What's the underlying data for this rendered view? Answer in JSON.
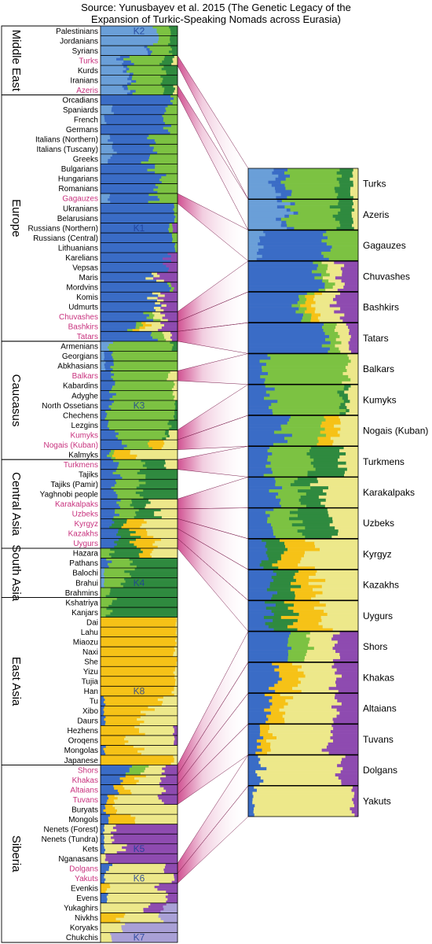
{
  "title_line1": "Source: Yunusbayev et al. 2015 (The Genetic Legacy of the",
  "title_line2": "Expansion of Turkic-Speaking Nomads across Eurasia)",
  "component_colors": {
    "K1": "#3a6cc6",
    "K2": "#6a9fd8",
    "K3": "#7cc242",
    "K4": "#2f8a3f",
    "K5": "#8e4bb0",
    "K6": "#ede88a",
    "K7": "#a9a0d6",
    "K8": "#f6c217"
  },
  "turkic_color": "#c8327e",
  "regions": [
    {
      "name": "Middle East",
      "start": "Palestinians",
      "end": "Azeris"
    },
    {
      "name": "Europe",
      "start": "Orcadians",
      "end": "Tatars"
    },
    {
      "name": "Caucasus",
      "start": "Armenians",
      "end": "Kalmyks"
    },
    {
      "name": "Central Asia",
      "start": "Turkmens",
      "end": "Uygurs"
    },
    {
      "name": "South Asia",
      "start": "Hazara",
      "end": "Brahmins"
    },
    {
      "name": "East Asia",
      "start": "Kshatriya",
      "end": "Japanese"
    },
    {
      "name": "Siberia",
      "start": "Shors",
      "end": "Chukchis"
    }
  ],
  "populations": [
    {
      "name": "Palestinians",
      "turkic": false
    },
    {
      "name": "Jordanians",
      "turkic": false
    },
    {
      "name": "Syrians",
      "turkic": false
    },
    {
      "name": "Turks",
      "turkic": true
    },
    {
      "name": "Kurds",
      "turkic": false
    },
    {
      "name": "Iranians",
      "turkic": false
    },
    {
      "name": "Azeris",
      "turkic": true
    },
    {
      "name": "Orcadians",
      "turkic": false
    },
    {
      "name": "Spaniards",
      "turkic": false
    },
    {
      "name": "French",
      "turkic": false
    },
    {
      "name": "Germans",
      "turkic": false
    },
    {
      "name": "Italians (Northern)",
      "turkic": false
    },
    {
      "name": "Italians (Tuscany)",
      "turkic": false
    },
    {
      "name": "Greeks",
      "turkic": false
    },
    {
      "name": "Bulgarians",
      "turkic": false
    },
    {
      "name": "Hungarians",
      "turkic": false
    },
    {
      "name": "Romanians",
      "turkic": false
    },
    {
      "name": "Gagauzes",
      "turkic": true
    },
    {
      "name": "Ukranians",
      "turkic": false
    },
    {
      "name": "Belarusians",
      "turkic": false
    },
    {
      "name": "Russians (Northern)",
      "turkic": false
    },
    {
      "name": "Russians (Central)",
      "turkic": false
    },
    {
      "name": "Lithuanians",
      "turkic": false
    },
    {
      "name": "Karelians",
      "turkic": false
    },
    {
      "name": "Vepsas",
      "turkic": false
    },
    {
      "name": "Maris",
      "turkic": false
    },
    {
      "name": "Mordvins",
      "turkic": false
    },
    {
      "name": "Komis",
      "turkic": false
    },
    {
      "name": "Udmurts",
      "turkic": false
    },
    {
      "name": "Chuvashes",
      "turkic": true
    },
    {
      "name": "Bashkirs",
      "turkic": true
    },
    {
      "name": "Tatars",
      "turkic": true
    },
    {
      "name": "Armenians",
      "turkic": false
    },
    {
      "name": "Georgians",
      "turkic": false
    },
    {
      "name": "Abkhasians",
      "turkic": false
    },
    {
      "name": "Balkars",
      "turkic": true
    },
    {
      "name": "Kabardins",
      "turkic": false
    },
    {
      "name": "Adyghe",
      "turkic": false
    },
    {
      "name": "North Ossetians",
      "turkic": false
    },
    {
      "name": "Chechens",
      "turkic": false
    },
    {
      "name": "Lezgins",
      "turkic": false
    },
    {
      "name": "Kumyks",
      "turkic": true
    },
    {
      "name": "Nogais (Kuban)",
      "turkic": true
    },
    {
      "name": "Kalmyks",
      "turkic": false
    },
    {
      "name": "Turkmens",
      "turkic": true
    },
    {
      "name": "Tajiks",
      "turkic": false
    },
    {
      "name": "Tajiks (Pamir)",
      "turkic": false
    },
    {
      "name": "Yaghnobi people",
      "turkic": false
    },
    {
      "name": "Karakalpaks",
      "turkic": true
    },
    {
      "name": "Uzbeks",
      "turkic": true
    },
    {
      "name": "Kyrgyz",
      "turkic": true
    },
    {
      "name": "Kazakhs",
      "turkic": true
    },
    {
      "name": "Uygurs",
      "turkic": true
    },
    {
      "name": "Hazara",
      "turkic": false
    },
    {
      "name": "Pathans",
      "turkic": false
    },
    {
      "name": "Balochi",
      "turkic": false
    },
    {
      "name": "Brahui",
      "turkic": false
    },
    {
      "name": "Brahmins",
      "turkic": false
    },
    {
      "name": "Kshatriya",
      "turkic": false
    },
    {
      "name": "Kanjars",
      "turkic": false
    },
    {
      "name": "Dai",
      "turkic": false
    },
    {
      "name": "Lahu",
      "turkic": false
    },
    {
      "name": "Miaozu",
      "turkic": false
    },
    {
      "name": "Naxi",
      "turkic": false
    },
    {
      "name": "She",
      "turkic": false
    },
    {
      "name": "Yizu",
      "turkic": false
    },
    {
      "name": "Tujia",
      "turkic": false
    },
    {
      "name": "Han",
      "turkic": false
    },
    {
      "name": "Tu",
      "turkic": false
    },
    {
      "name": "Xibo",
      "turkic": false
    },
    {
      "name": "Daurs",
      "turkic": false
    },
    {
      "name": "Hezhens",
      "turkic": false
    },
    {
      "name": "Oroqens",
      "turkic": false
    },
    {
      "name": "Mongolas",
      "turkic": false
    },
    {
      "name": "Japanese",
      "turkic": false
    },
    {
      "name": "Shors",
      "turkic": true
    },
    {
      "name": "Khakas",
      "turkic": true
    },
    {
      "name": "Altaians",
      "turkic": true
    },
    {
      "name": "Tuvans",
      "turkic": true
    },
    {
      "name": "Buryats",
      "turkic": false
    },
    {
      "name": "Mongols",
      "turkic": false
    },
    {
      "name": "Nenets (Forest)",
      "turkic": false
    },
    {
      "name": "Nenets (Tundra)",
      "turkic": false
    },
    {
      "name": "Kets",
      "turkic": false
    },
    {
      "name": "Nganasans",
      "turkic": false
    },
    {
      "name": "Dolgans",
      "turkic": true
    },
    {
      "name": "Yakuts",
      "turkic": true
    },
    {
      "name": "Evenkis",
      "turkic": false
    },
    {
      "name": "Evens",
      "turkic": false
    },
    {
      "name": "Yukaghirs",
      "turkic": false
    },
    {
      "name": "Nivkhs",
      "turkic": false
    },
    {
      "name": "Koryaks",
      "turkic": false
    },
    {
      "name": "Chukchis",
      "turkic": false
    }
  ],
  "component_labels": [
    {
      "label": "K2",
      "population": "Palestinians"
    },
    {
      "label": "K1",
      "population": "Russians (Northern)"
    },
    {
      "label": "K3",
      "population": "North Ossetians"
    },
    {
      "label": "K4",
      "population": "Brahui"
    },
    {
      "label": "K8",
      "population": "Han"
    },
    {
      "label": "K5",
      "population": "Kets"
    },
    {
      "label": "K6",
      "population": "Yakuts"
    },
    {
      "label": "K7",
      "population": "Chukchis"
    }
  ],
  "zoomed_populations": [
    "Turks",
    "Azeris",
    "Gagauzes",
    "Chuvashes",
    "Bashkirs",
    "Tatars",
    "Balkars",
    "Kumyks",
    "Nogais (Kuban)",
    "Turkmens",
    "Karakalpaks",
    "Uzbeks",
    "Kyrgyz",
    "Kazakhs",
    "Uygurs",
    "Shors",
    "Khakas",
    "Altaians",
    "Tuvans",
    "Dolgans",
    "Yakuts"
  ],
  "admixture_proportions": {
    "Palestinians": {
      "K2": 0.72,
      "K3": 0.18,
      "K4": 0.1
    },
    "Jordanians": {
      "K2": 0.68,
      "K3": 0.2,
      "K4": 0.12
    },
    "Syrians": {
      "K2": 0.55,
      "K3": 0.3,
      "K4": 0.1,
      "K1": 0.05
    },
    "Turks": {
      "K2": 0.25,
      "K3": 0.45,
      "K1": 0.12,
      "K4": 0.12,
      "K6": 0.06
    },
    "Kurds": {
      "K2": 0.3,
      "K3": 0.5,
      "K4": 0.15,
      "K1": 0.05
    },
    "Iranians": {
      "K2": 0.35,
      "K3": 0.35,
      "K4": 0.25,
      "K1": 0.05
    },
    "Azeris": {
      "K2": 0.3,
      "K3": 0.45,
      "K4": 0.15,
      "K1": 0.05,
      "K6": 0.05
    },
    "Orcadians": {
      "K1": 0.92,
      "K3": 0.08
    },
    "Spaniards": {
      "K1": 0.7,
      "K2": 0.15,
      "K3": 0.15
    },
    "French": {
      "K1": 0.8,
      "K3": 0.15,
      "K2": 0.05
    },
    "Germans": {
      "K1": 0.88,
      "K3": 0.12
    },
    "Italians (Northern)": {
      "K1": 0.6,
      "K3": 0.3,
      "K2": 0.1
    },
    "Italians (Tuscany)": {
      "K1": 0.55,
      "K3": 0.3,
      "K2": 0.15
    },
    "Greeks": {
      "K1": 0.5,
      "K3": 0.38,
      "K2": 0.12
    },
    "Bulgarians": {
      "K1": 0.7,
      "K3": 0.3
    },
    "Hungarians": {
      "K1": 0.8,
      "K3": 0.2
    },
    "Romanians": {
      "K1": 0.72,
      "K3": 0.28
    },
    "Gagauzes": {
      "K1": 0.6,
      "K3": 0.3,
      "K2": 0.1
    },
    "Ukranians": {
      "K1": 0.95,
      "K3": 0.05
    },
    "Belarusians": {
      "K1": 0.96,
      "K3": 0.04
    },
    "Russians (Northern)": {
      "K1": 0.9,
      "K5": 0.06,
      "K3": 0.04
    },
    "Russians (Central)": {
      "K1": 0.93,
      "K3": 0.07
    },
    "Lithuanians": {
      "K1": 0.97,
      "K3": 0.03
    },
    "Karelians": {
      "K1": 0.88,
      "K5": 0.12
    },
    "Vepsas": {
      "K1": 0.85,
      "K5": 0.15
    },
    "Maris": {
      "K1": 0.65,
      "K5": 0.25,
      "K6": 0.1
    },
    "Mordvins": {
      "K1": 0.88,
      "K5": 0.07,
      "K3": 0.05
    },
    "Komis": {
      "K1": 0.7,
      "K5": 0.2,
      "K6": 0.1
    },
    "Udmurts": {
      "K1": 0.72,
      "K5": 0.2,
      "K6": 0.08
    },
    "Chuvashes": {
      "K1": 0.65,
      "K5": 0.15,
      "K6": 0.12,
      "K3": 0.08
    },
    "Bashkirs": {
      "K1": 0.45,
      "K5": 0.2,
      "K6": 0.2,
      "K8": 0.08,
      "K3": 0.07
    },
    "Tatars": {
      "K1": 0.7,
      "K3": 0.12,
      "K5": 0.08,
      "K6": 0.1
    },
    "Armenians": {
      "K3": 0.8,
      "K2": 0.12,
      "K4": 0.08
    },
    "Georgians": {
      "K3": 0.85,
      "K1": 0.1,
      "K2": 0.05
    },
    "Abkhasians": {
      "K3": 0.85,
      "K1": 0.1,
      "K2": 0.05
    },
    "Balkars": {
      "K3": 0.75,
      "K1": 0.15,
      "K6": 0.1
    },
    "Kabardins": {
      "K3": 0.8,
      "K1": 0.15,
      "K6": 0.05
    },
    "Adyghe": {
      "K3": 0.82,
      "K1": 0.13,
      "K6": 0.05
    },
    "North Ossetians": {
      "K3": 0.85,
      "K1": 0.12,
      "K4": 0.03
    },
    "Chechens": {
      "K3": 0.88,
      "K1": 0.08,
      "K4": 0.04
    },
    "Lezgins": {
      "K3": 0.8,
      "K1": 0.1,
      "K4": 0.1
    },
    "Kumyks": {
      "K3": 0.65,
      "K1": 0.2,
      "K6": 0.1,
      "K4": 0.05
    },
    "Nogais (Kuban)": {
      "K3": 0.35,
      "K1": 0.3,
      "K6": 0.2,
      "K8": 0.15
    },
    "Kalmyks": {
      "K6": 0.6,
      "K8": 0.25,
      "K1": 0.1,
      "K3": 0.05
    },
    "Turkmens": {
      "K3": 0.35,
      "K4": 0.3,
      "K1": 0.2,
      "K6": 0.15
    },
    "Tajiks": {
      "K3": 0.35,
      "K4": 0.45,
      "K1": 0.2
    },
    "Tajiks (Pamir)": {
      "K3": 0.3,
      "K4": 0.5,
      "K1": 0.2
    },
    "Yaghnobi people": {
      "K3": 0.35,
      "K4": 0.45,
      "K1": 0.2
    },
    "Karakalpaks": {
      "K6": 0.35,
      "K1": 0.25,
      "K4": 0.2,
      "K3": 0.2
    },
    "Uzbeks": {
      "K4": 0.3,
      "K3": 0.25,
      "K1": 0.2,
      "K6": 0.25
    },
    "Kyrgyz": {
      "K6": 0.45,
      "K8": 0.25,
      "K1": 0.15,
      "K4": 0.15
    },
    "Kazakhs": {
      "K6": 0.4,
      "K8": 0.2,
      "K1": 0.2,
      "K4": 0.2
    },
    "Uygurs": {
      "K6": 0.3,
      "K8": 0.3,
      "K4": 0.2,
      "K1": 0.2
    },
    "Hazara": {
      "K6": 0.35,
      "K4": 0.35,
      "K8": 0.15,
      "K3": 0.15
    },
    "Pathans": {
      "K4": 0.6,
      "K3": 0.3,
      "K1": 0.1
    },
    "Balochi": {
      "K4": 0.65,
      "K3": 0.3,
      "K2": 0.05
    },
    "Brahui": {
      "K4": 0.7,
      "K3": 0.25,
      "K2": 0.05
    },
    "Brahmins": {
      "K4": 0.9,
      "K3": 0.1
    },
    "Kshatriya": {
      "K4": 0.85,
      "K3": 0.15
    },
    "Kanjars": {
      "K4": 0.9,
      "K3": 0.1
    },
    "Dai": {
      "K8": 0.98,
      "K6": 0.02
    },
    "Lahu": {
      "K8": 0.98,
      "K6": 0.02
    },
    "Miaozu": {
      "K8": 0.98,
      "K6": 0.02
    },
    "Naxi": {
      "K8": 0.95,
      "K6": 0.05
    },
    "She": {
      "K8": 0.99,
      "K6": 0.01
    },
    "Yizu": {
      "K8": 0.96,
      "K6": 0.04
    },
    "Tujia": {
      "K8": 0.97,
      "K6": 0.03
    },
    "Han": {
      "K8": 0.95,
      "K6": 0.05
    },
    "Tu": {
      "K8": 0.7,
      "K6": 0.25,
      "K1": 0.05
    },
    "Xibo": {
      "K8": 0.6,
      "K6": 0.35,
      "K1": 0.05
    },
    "Daurs": {
      "K8": 0.5,
      "K6": 0.45,
      "K1": 0.05
    },
    "Hezhens": {
      "K8": 0.5,
      "K6": 0.45,
      "K5": 0.05
    },
    "Oroqens": {
      "K8": 0.3,
      "K6": 0.65,
      "K5": 0.05
    },
    "Mongolas": {
      "K8": 0.45,
      "K6": 0.5,
      "K1": 0.05
    },
    "Japanese": {
      "K8": 0.95,
      "K6": 0.05
    },
    "Shors": {
      "K1": 0.35,
      "K5": 0.2,
      "K6": 0.25,
      "K3": 0.2
    },
    "Khakas": {
      "K1": 0.25,
      "K6": 0.35,
      "K5": 0.2,
      "K8": 0.2
    },
    "Altaians": {
      "K6": 0.45,
      "K1": 0.2,
      "K5": 0.2,
      "K8": 0.15
    },
    "Tuvans": {
      "K6": 0.55,
      "K5": 0.25,
      "K8": 0.1,
      "K1": 0.1
    },
    "Buryats": {
      "K6": 0.8,
      "K8": 0.15,
      "K1": 0.05
    },
    "Mongols": {
      "K6": 0.55,
      "K8": 0.35,
      "K1": 0.1
    },
    "Nenets (Forest)": {
      "K5": 0.8,
      "K6": 0.15,
      "K1": 0.05
    },
    "Nenets (Tundra)": {
      "K5": 0.85,
      "K6": 0.1,
      "K1": 0.05
    },
    "Kets": {
      "K5": 0.75,
      "K6": 0.2,
      "K1": 0.05
    },
    "Nganasans": {
      "K5": 0.9,
      "K6": 0.1
    },
    "Dolgans": {
      "K6": 0.75,
      "K5": 0.15,
      "K1": 0.1
    },
    "Yakuts": {
      "K6": 0.9,
      "K1": 0.05,
      "K5": 0.05
    },
    "Evenkis": {
      "K6": 0.7,
      "K5": 0.2,
      "K8": 0.1
    },
    "Evens": {
      "K6": 0.75,
      "K5": 0.15,
      "K1": 0.1
    },
    "Yukaghirs": {
      "K6": 0.6,
      "K5": 0.2,
      "K7": 0.2
    },
    "Nivkhs": {
      "K6": 0.55,
      "K8": 0.25,
      "K7": 0.2
    },
    "Koryaks": {
      "K7": 0.7,
      "K6": 0.3
    },
    "Chukchis": {
      "K7": 0.85,
      "K6": 0.15
    }
  }
}
